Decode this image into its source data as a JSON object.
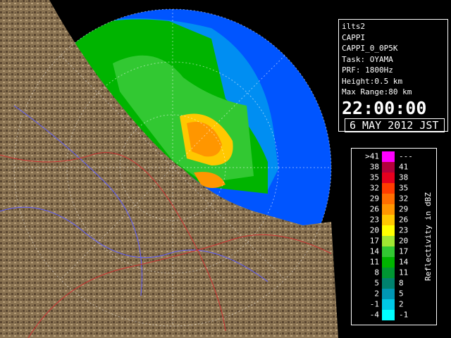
{
  "info": {
    "lines": [
      "ilts2",
      "CAPPI",
      "CAPPI_0_0P5K",
      "Task: OYAMA",
      "PRF: 1800Hz",
      "Height:0.5 km",
      "Max Range:80 km"
    ],
    "time": "22:00:00",
    "date": "6 MAY 2012 JST"
  },
  "legend": {
    "title": "Reflectivity in dBZ",
    "rows": [
      {
        "low": ">41",
        "high": "---",
        "color": "#ff00ff"
      },
      {
        "low": "38",
        "high": "41",
        "color": "#b4003c"
      },
      {
        "low": "35",
        "high": "38",
        "color": "#e6001e"
      },
      {
        "low": "32",
        "high": "35",
        "color": "#ff3c00"
      },
      {
        "low": "29",
        "high": "32",
        "color": "#ff6e00"
      },
      {
        "low": "26",
        "high": "29",
        "color": "#ff9600"
      },
      {
        "low": "23",
        "high": "26",
        "color": "#ffc800"
      },
      {
        "low": "20",
        "high": "23",
        "color": "#ffff00"
      },
      {
        "low": "17",
        "high": "20",
        "color": "#a0e632"
      },
      {
        "low": "14",
        "high": "17",
        "color": "#32c832"
      },
      {
        "low": "11",
        "high": "14",
        "color": "#00b400"
      },
      {
        "low": "8",
        "high": "11",
        "color": "#009632"
      },
      {
        "low": "5",
        "high": "8",
        "color": "#00826e"
      },
      {
        "low": "2",
        "high": "5",
        "color": "#0096b4"
      },
      {
        "low": "-1",
        "high": "2",
        "color": "#00c8e6"
      },
      {
        "low": "-4",
        "high": "-1",
        "color": "#00ffff"
      }
    ]
  }
}
